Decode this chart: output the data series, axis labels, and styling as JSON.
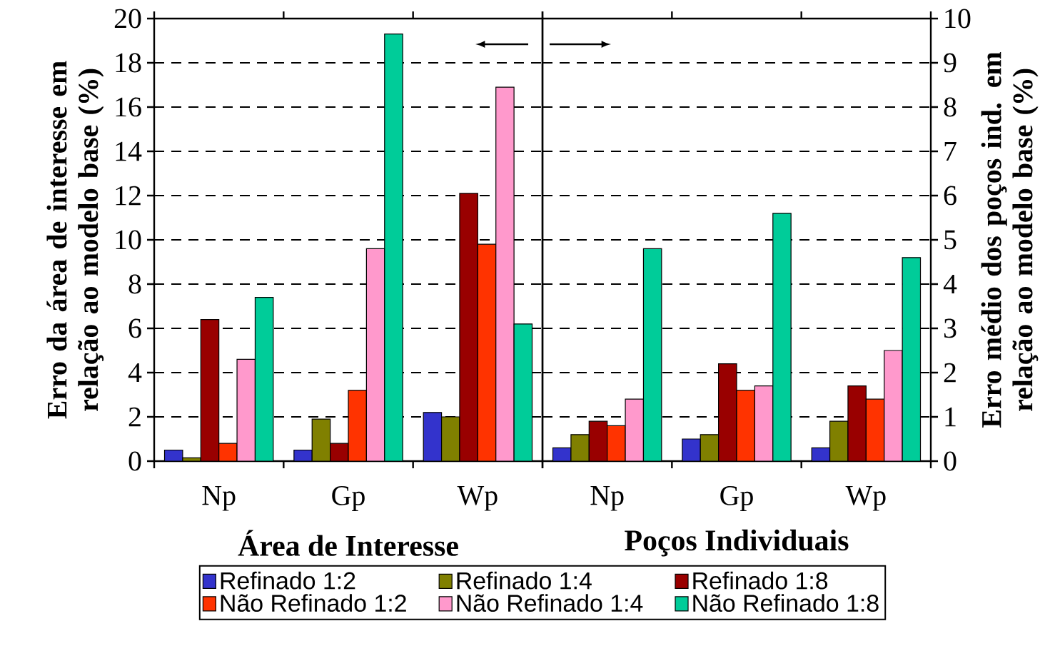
{
  "chart_data": [
    {
      "type": "bar",
      "xlabel": "Área de Interesse",
      "ylabel": "Erro da área de interesse em relação ao modelo base (%)",
      "categories": [
        "Np",
        "Gp",
        "Wp"
      ],
      "ylim": [
        0,
        20
      ],
      "yticks": [
        0,
        2,
        4,
        6,
        8,
        10,
        12,
        14,
        16,
        18,
        20
      ],
      "grid": "y",
      "legend": "bottom",
      "series": [
        {
          "name": "Refinado 1:2",
          "color": "#3333cc",
          "values": [
            0.5,
            0.5,
            2.2
          ]
        },
        {
          "name": "Refinado 1:4",
          "color": "#808000",
          "values": [
            0.15,
            1.9,
            2.0
          ]
        },
        {
          "name": "Refinado 1:8",
          "color": "#990000",
          "values": [
            6.4,
            0.8,
            12.1
          ]
        },
        {
          "name": "Não Refinado 1:2",
          "color": "#ff3300",
          "values": [
            0.8,
            3.2,
            9.8
          ]
        },
        {
          "name": "Não Refinado 1:4",
          "color": "#ff99cc",
          "values": [
            4.6,
            9.6,
            16.9
          ]
        },
        {
          "name": "Não Refinado 1:8",
          "color": "#00cc99",
          "values": [
            7.4,
            19.3,
            6.2
          ]
        }
      ]
    },
    {
      "type": "bar",
      "xlabel": "Poços Individuais",
      "y2label": "Erro médio dos poços ind. em relação ao modelo base (%)",
      "categories": [
        "Np",
        "Gp",
        "Wp"
      ],
      "y2lim": [
        0,
        10
      ],
      "y2ticks": [
        0,
        1,
        2,
        3,
        4,
        5,
        6,
        7,
        8,
        9,
        10
      ],
      "grid": "y",
      "series": [
        {
          "color": "#3333cc",
          "axis": "y2",
          "values": [
            0.3,
            0.5,
            0.3
          ]
        },
        {
          "color": "#808000",
          "axis": "y2",
          "values": [
            0.6,
            0.6,
            0.9
          ]
        },
        {
          "color": "#990000",
          "axis": "y2",
          "values": [
            0.9,
            2.2,
            1.7
          ]
        },
        {
          "color": "#ff3300",
          "axis": "y2",
          "values": [
            0.8,
            1.6,
            1.4
          ]
        },
        {
          "color": "#ff99cc",
          "axis": "y2",
          "values": [
            1.4,
            1.7,
            2.5
          ]
        },
        {
          "color": "#00cc99",
          "axis": "y2",
          "values": [
            4.8,
            5.6,
            4.6
          ]
        }
      ]
    }
  ]
}
